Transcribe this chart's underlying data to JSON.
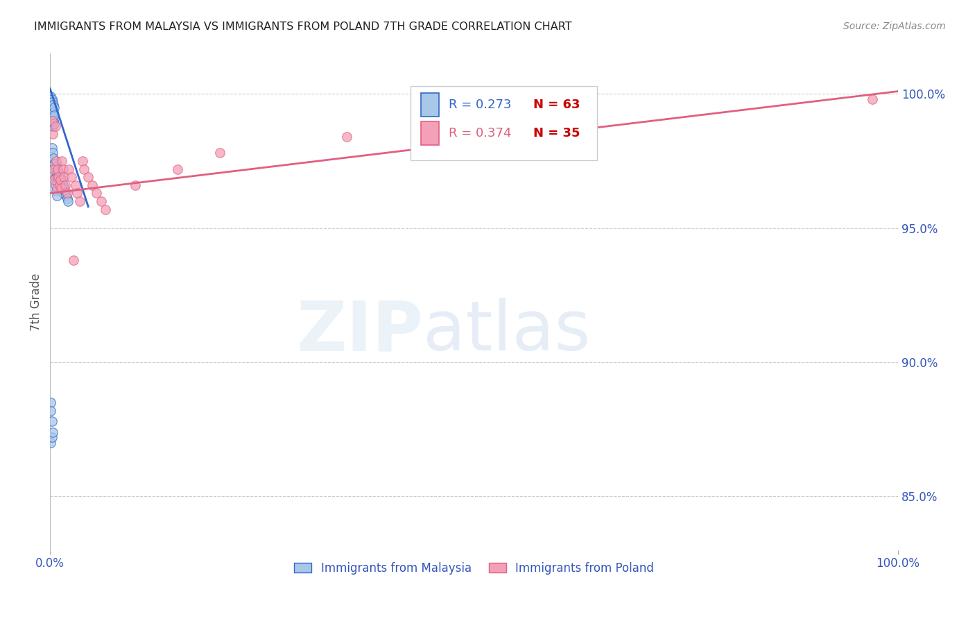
{
  "title": "IMMIGRANTS FROM MALAYSIA VS IMMIGRANTS FROM POLAND 7TH GRADE CORRELATION CHART",
  "source": "Source: ZipAtlas.com",
  "ylabel": "7th Grade",
  "y_tick_labels": [
    "85.0%",
    "90.0%",
    "95.0%",
    "100.0%"
  ],
  "y_tick_positions": [
    0.85,
    0.9,
    0.95,
    1.0
  ],
  "color_malaysia": "#A8C8E8",
  "color_poland": "#F4A0B8",
  "color_trendline_malaysia": "#3366CC",
  "color_trendline_poland": "#E06080",
  "color_axis_labels": "#3355BB",
  "color_title": "#222222",
  "color_source": "#888888",
  "color_grid": "#CCCCCC",
  "xlim": [
    0.0,
    1.0
  ],
  "ylim": [
    0.83,
    1.015
  ],
  "bottom_legend_label1": "Immigrants from Malaysia",
  "bottom_legend_label2": "Immigrants from Poland",
  "legend_r1": "R = 0.273",
  "legend_n1": "N = 63",
  "legend_r2": "R = 0.374",
  "legend_n2": "N = 35",
  "color_r": "#3366CC",
  "color_n": "#CC0000",
  "malaysia_x": [
    0.001,
    0.001,
    0.001,
    0.001,
    0.001,
    0.002,
    0.002,
    0.002,
    0.002,
    0.002,
    0.003,
    0.003,
    0.003,
    0.003,
    0.004,
    0.004,
    0.004,
    0.005,
    0.005,
    0.005,
    0.006,
    0.006,
    0.006,
    0.007,
    0.007,
    0.007,
    0.008,
    0.008,
    0.008,
    0.009,
    0.009,
    0.01,
    0.01,
    0.01,
    0.011,
    0.011,
    0.012,
    0.012,
    0.013,
    0.013,
    0.014,
    0.014,
    0.015,
    0.015,
    0.016,
    0.017,
    0.018,
    0.019,
    0.02,
    0.021,
    0.002,
    0.003,
    0.004,
    0.005,
    0.006,
    0.007,
    0.008,
    0.001,
    0.002,
    0.003,
    0.001,
    0.001,
    0.002
  ],
  "malaysia_y": [
    0.999,
    0.997,
    0.995,
    0.993,
    0.99,
    0.998,
    0.996,
    0.994,
    0.991,
    0.988,
    0.997,
    0.994,
    0.991,
    0.988,
    0.996,
    0.993,
    0.99,
    0.995,
    0.992,
    0.989,
    0.975,
    0.972,
    0.969,
    0.974,
    0.971,
    0.968,
    0.973,
    0.97,
    0.967,
    0.972,
    0.969,
    0.971,
    0.968,
    0.965,
    0.97,
    0.967,
    0.969,
    0.966,
    0.968,
    0.965,
    0.967,
    0.964,
    0.966,
    0.963,
    0.965,
    0.964,
    0.963,
    0.962,
    0.961,
    0.96,
    0.98,
    0.978,
    0.976,
    0.974,
    0.966,
    0.964,
    0.962,
    0.87,
    0.872,
    0.874,
    0.885,
    0.882,
    0.878
  ],
  "poland_x": [
    0.002,
    0.003,
    0.004,
    0.005,
    0.006,
    0.007,
    0.008,
    0.009,
    0.01,
    0.011,
    0.012,
    0.013,
    0.014,
    0.015,
    0.016,
    0.018,
    0.02,
    0.022,
    0.025,
    0.028,
    0.03,
    0.032,
    0.035,
    0.038,
    0.04,
    0.045,
    0.05,
    0.055,
    0.06,
    0.065,
    0.1,
    0.15,
    0.2,
    0.35,
    0.97
  ],
  "poland_y": [
    0.99,
    0.985,
    0.972,
    0.968,
    0.988,
    0.975,
    0.965,
    0.972,
    0.969,
    0.966,
    0.968,
    0.965,
    0.975,
    0.972,
    0.969,
    0.966,
    0.963,
    0.972,
    0.969,
    0.938,
    0.966,
    0.963,
    0.96,
    0.975,
    0.972,
    0.969,
    0.966,
    0.963,
    0.96,
    0.957,
    0.966,
    0.972,
    0.978,
    0.984,
    0.998
  ],
  "malaysia_trend_x0": 0.0,
  "malaysia_trend_y0": 1.002,
  "malaysia_trend_x1": 0.045,
  "malaysia_trend_y1": 0.958,
  "poland_trend_x0": 0.0,
  "poland_trend_y0": 0.963,
  "poland_trend_x1": 1.0,
  "poland_trend_y1": 1.001
}
